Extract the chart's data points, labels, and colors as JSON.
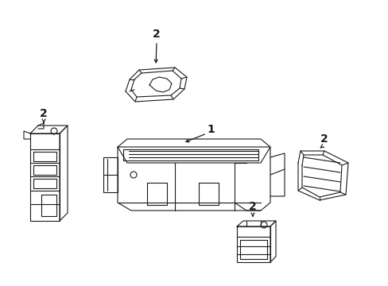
{
  "background_color": "#ffffff",
  "line_color": "#1a1a1a",
  "parts": {
    "main_unit_label": "1",
    "bracket_label": "2"
  },
  "figsize": [
    4.89,
    3.6
  ],
  "dpi": 100
}
